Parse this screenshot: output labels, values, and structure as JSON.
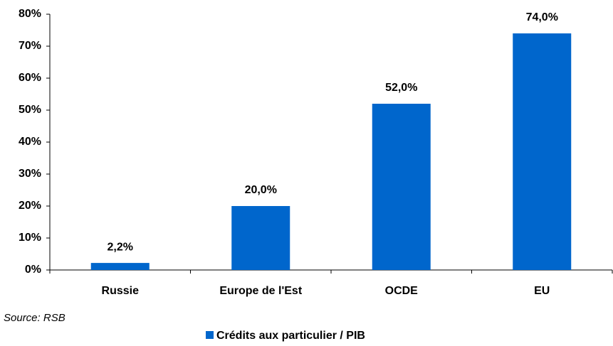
{
  "chart_data": {
    "type": "bar",
    "categories": [
      "Russie",
      "Europe de l'Est",
      "OCDE",
      "EU"
    ],
    "series": [
      {
        "name": "Crédits aux particulier / PIB",
        "color": "#0066cc",
        "values": [
          2.2,
          20,
          52,
          74
        ],
        "value_labels": [
          "2,2%",
          "20,0%",
          "52,0%",
          "74,0%"
        ]
      }
    ],
    "ylim": [
      0,
      80
    ],
    "yticks": [
      {
        "value": 0,
        "label": "0%"
      },
      {
        "value": 10,
        "label": "10%"
      },
      {
        "value": 20,
        "label": "20%"
      },
      {
        "value": 30,
        "label": "30%"
      },
      {
        "value": 40,
        "label": "40%"
      },
      {
        "value": 50,
        "label": "50%"
      },
      {
        "value": 60,
        "label": "60%"
      },
      {
        "value": 70,
        "label": "70%"
      },
      {
        "value": 80,
        "label": "80%"
      }
    ],
    "annotation": "Source: RSB",
    "legend": "bottom",
    "grid": false
  }
}
